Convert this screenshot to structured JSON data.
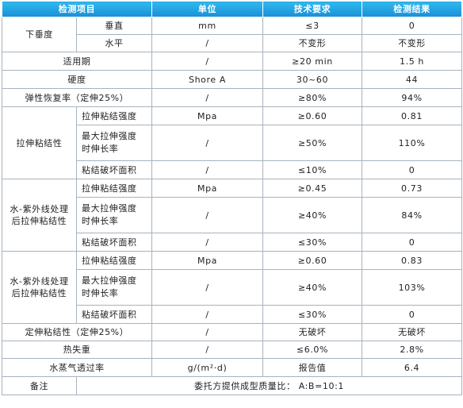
{
  "headers": [
    "检测项目",
    "单位",
    "技术要求",
    "检测结果"
  ],
  "rows": {
    "sag": {
      "label": "下垂度",
      "vertical": {
        "sub": "垂直",
        "unit": "mm",
        "req": "≤3",
        "result": "0"
      },
      "horizontal": {
        "sub": "水平",
        "unit": "/",
        "req": "不变形",
        "result": "不变形"
      }
    },
    "pot_life": {
      "label": "适用期",
      "unit": "/",
      "req": "≥20 min",
      "result": "1.5 h"
    },
    "hardness": {
      "label": "硬度",
      "unit": "Shore A",
      "req": "30~60",
      "result": "44"
    },
    "elastic_recovery": {
      "label": "弹性恢复率（定伸25%）",
      "unit": "/",
      "req": "≥80%",
      "result": "94%"
    },
    "tensile_bond": {
      "label": "拉伸粘结性",
      "strength": {
        "sub": "拉伸粘结强度",
        "unit": "Mpa",
        "req": "≥0.60",
        "result": "0.81"
      },
      "elongation": {
        "sub_line1": "最大拉伸强度",
        "sub_line2": "时伸长率",
        "unit": "/",
        "req": "≥50%",
        "result": "110%"
      },
      "failure_area": {
        "sub": "粘结破坏面积",
        "unit": "/",
        "req": "≤10%",
        "result": "0"
      }
    },
    "uv_tensile_1": {
      "label_line1": "水-紫外线处理",
      "label_line2": "后拉伸粘结性",
      "strength": {
        "sub": "拉伸粘结强度",
        "unit": "Mpa",
        "req": "≥0.45",
        "result": "0.73"
      },
      "elongation": {
        "sub_line1": "最大拉伸强度",
        "sub_line2": "时伸长率",
        "unit": "/",
        "req": "≥40%",
        "result": "84%"
      },
      "failure_area": {
        "sub": "粘结破坏面积",
        "unit": "/",
        "req": "≤30%",
        "result": "0"
      }
    },
    "uv_tensile_2": {
      "label_line1": "水-紫外线处理",
      "label_line2": "后拉伸粘结性",
      "strength": {
        "sub": "拉伸粘结强度",
        "unit": "Mpa",
        "req": "≥0.60",
        "result": "0.83"
      },
      "elongation": {
        "sub_line1": "最大拉伸强度",
        "sub_line2": "时伸长率",
        "unit": "/",
        "req": "≥40%",
        "result": "103%"
      },
      "failure_area": {
        "sub": "粘结破坏面积",
        "unit": "/",
        "req": "≤30%",
        "result": "0"
      }
    },
    "fixed_elongation_bond": {
      "label": "定伸粘结性（定伸25%）",
      "unit": "/",
      "req": "无破坏",
      "result": "无破坏"
    },
    "heat_loss": {
      "label": "热失重",
      "unit": "/",
      "req": "≤6.0%",
      "result": "2.8%"
    },
    "vapor_transmission": {
      "label": "水蒸气透过率",
      "unit": "g/(m²·d)",
      "req": "报告值",
      "result": "6.4"
    },
    "notes": {
      "label": "备注",
      "text": "委托方提供成型质量比：  A:B=10:1"
    }
  }
}
